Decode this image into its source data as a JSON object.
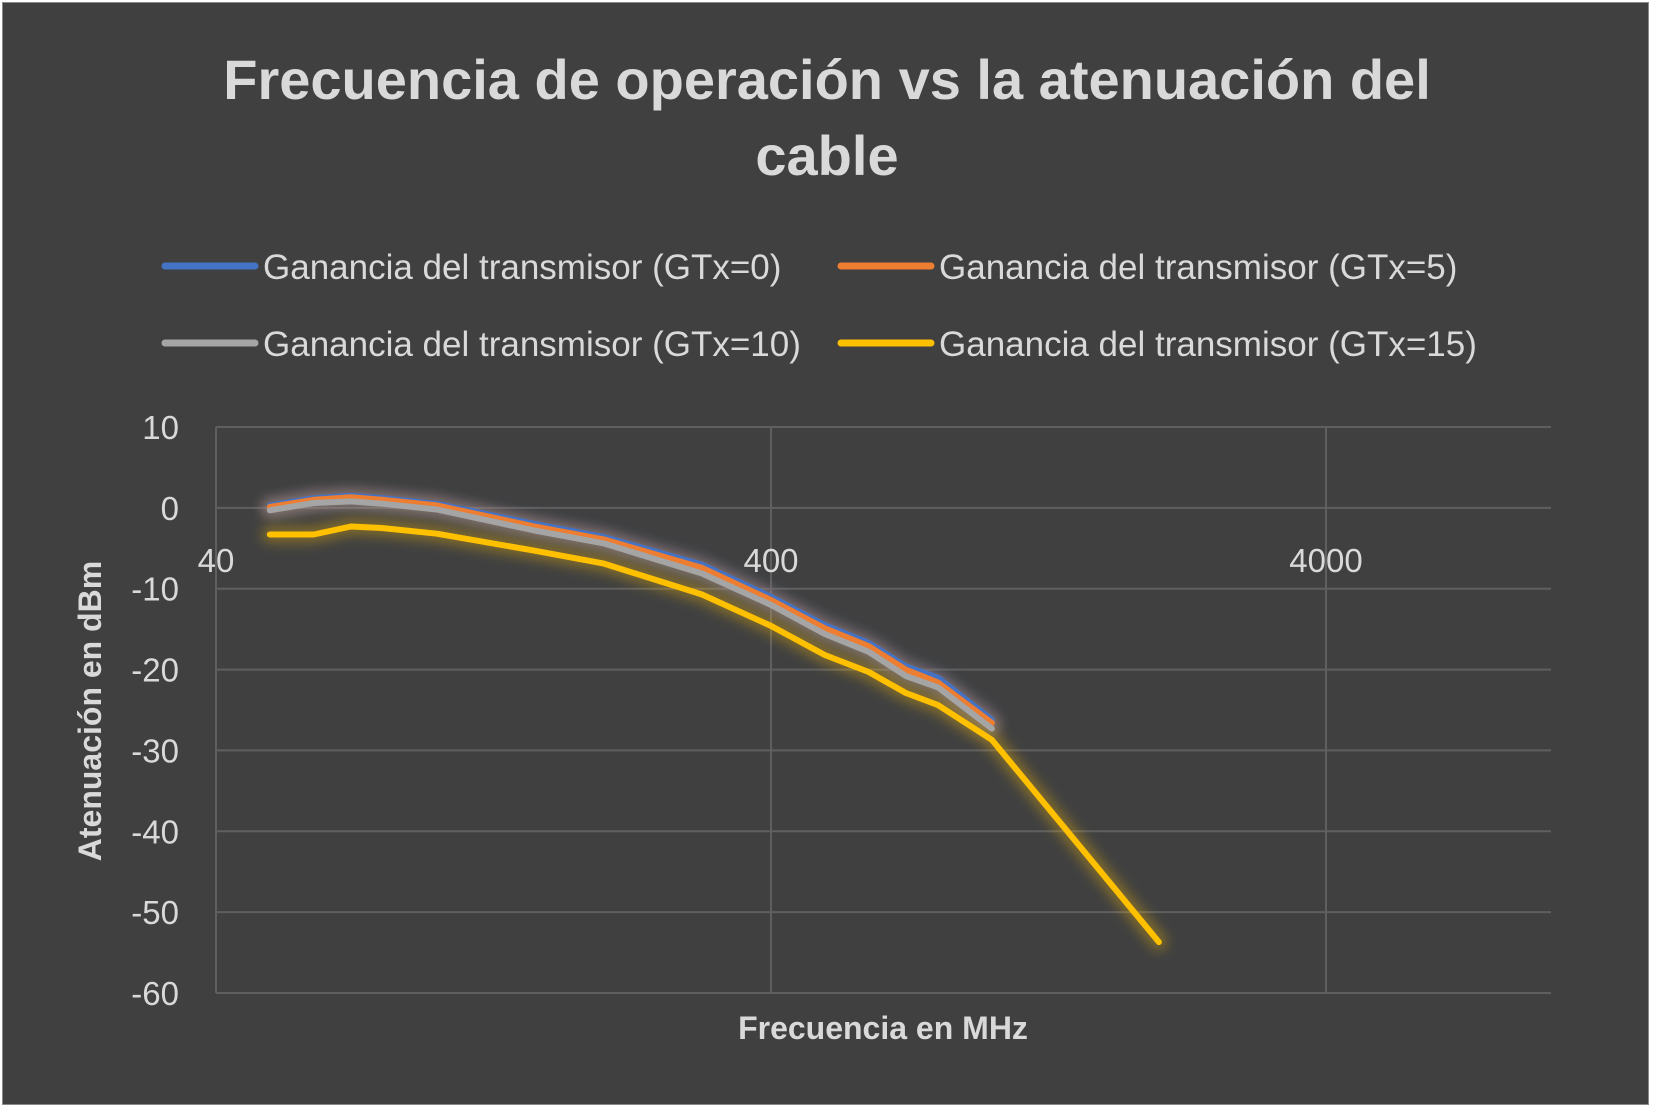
{
  "chart_data": {
    "type": "line",
    "title_lines": [
      "Frecuencia de operación vs la atenuación del",
      "cable"
    ],
    "xlabel": "Frecuencia en MHz",
    "ylabel": "Atenuación en dBm",
    "x_scale": "log",
    "xlim": [
      40,
      10000
    ],
    "ylim": [
      -60,
      10
    ],
    "x_ticks": [
      40,
      400,
      4000
    ],
    "y_ticks": [
      10,
      0,
      -10,
      -20,
      -30,
      -40,
      -50,
      -60
    ],
    "grid": true,
    "legend_position": "top",
    "series": [
      {
        "name": "Ganancia del transmisor (GTx=0)",
        "color": "#4472c4",
        "x": [
          50,
          60,
          70,
          80,
          100,
          150,
          200,
          300,
          400,
          500,
          600,
          700,
          800,
          1000
        ],
        "y": [
          0.3,
          1.2,
          1.5,
          1.2,
          0.5,
          -2.0,
          -3.6,
          -7.0,
          -11.0,
          -14.5,
          -16.7,
          -19.6,
          -21.0,
          -26.2
        ]
      },
      {
        "name": "Ganancia del transmisor (GTx=5)",
        "color": "#ed7d31",
        "x": [
          50,
          60,
          70,
          80,
          100,
          150,
          200,
          300,
          400,
          500,
          600,
          700,
          800,
          1000
        ],
        "y": [
          0.1,
          1.0,
          1.3,
          1.0,
          0.3,
          -2.3,
          -3.9,
          -7.4,
          -11.4,
          -14.9,
          -17.1,
          -20.0,
          -21.6,
          -26.6
        ]
      },
      {
        "name": "Ganancia del transmisor (GTx=10)",
        "color": "#a5a5a5",
        "x": [
          50,
          60,
          70,
          80,
          100,
          150,
          200,
          300,
          400,
          500,
          600,
          700,
          800,
          1000
        ],
        "y": [
          -0.3,
          0.6,
          0.8,
          0.5,
          -0.2,
          -2.8,
          -4.4,
          -8.1,
          -12.0,
          -15.6,
          -17.8,
          -20.8,
          -22.2,
          -27.3
        ]
      },
      {
        "name": "Ganancia del transmisor (GTx=15)",
        "color": "#ffc000",
        "x": [
          50,
          60,
          70,
          80,
          100,
          150,
          200,
          300,
          400,
          500,
          600,
          700,
          800,
          1000,
          2000
        ],
        "y": [
          -3.3,
          -3.3,
          -2.3,
          -2.5,
          -3.2,
          -5.3,
          -6.9,
          -10.7,
          -14.6,
          -18.2,
          -20.3,
          -22.9,
          -24.4,
          -28.7,
          -53.7
        ]
      }
    ]
  }
}
